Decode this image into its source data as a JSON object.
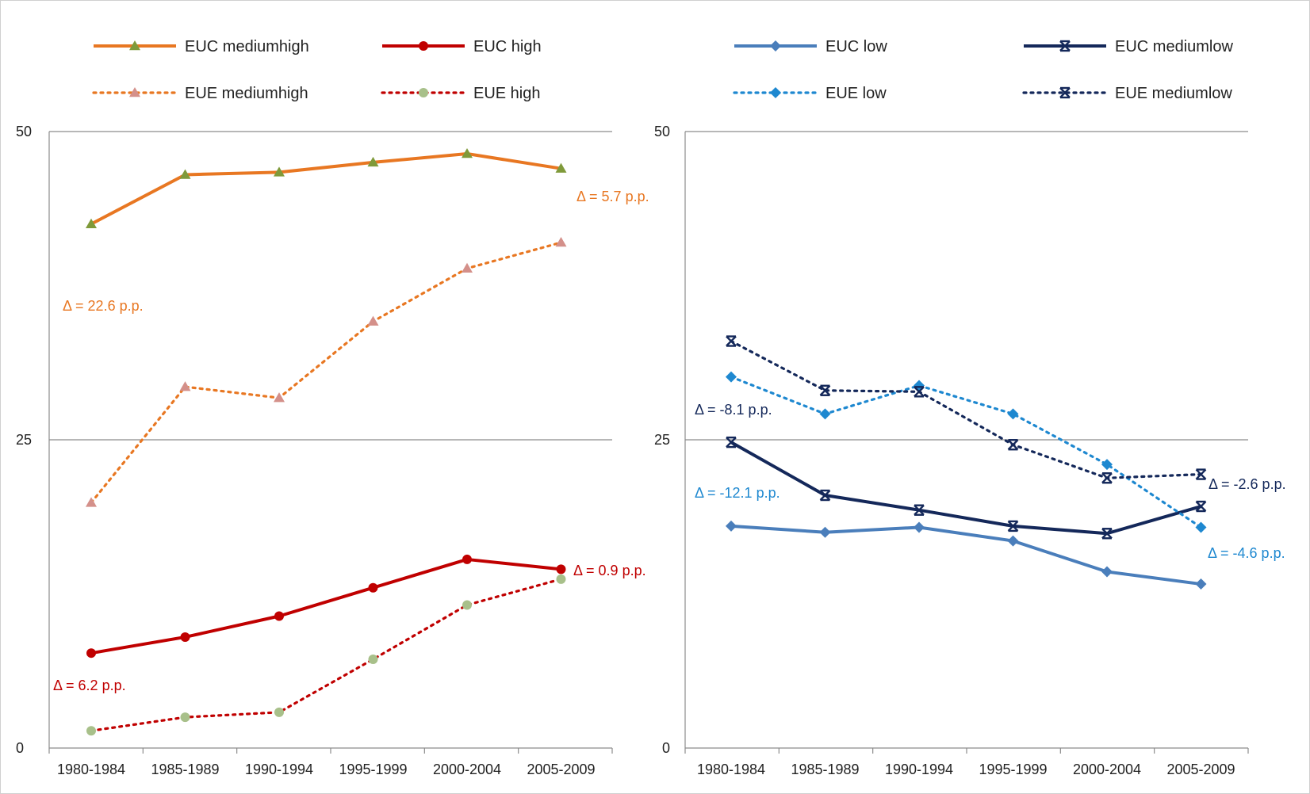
{
  "chart_data": [
    {
      "type": "line",
      "title": "",
      "xlabel": "",
      "ylabel": "",
      "ylim": [
        0,
        50
      ],
      "yticks": [
        "0",
        "25",
        "50"
      ],
      "categories": [
        "1980-1984",
        "1985-1989",
        "1990-1994",
        "1995-1999",
        "2000-2004",
        "2005-2009"
      ],
      "grid": "horizontal major gridlines",
      "legend_position": "top",
      "series": [
        {
          "name": "EUC mediumhigh",
          "values": [
            42.5,
            46.5,
            46.7,
            47.5,
            48.2,
            47.0
          ],
          "color": "#E87722",
          "style": "solid",
          "marker": "triangle",
          "marker_color": "#7F9A3A"
        },
        {
          "name": "EUC high",
          "values": [
            7.7,
            9.0,
            10.7,
            13.0,
            15.3,
            14.5
          ],
          "color": "#C00000",
          "style": "solid",
          "marker": "circle",
          "marker_color": "#C00000"
        },
        {
          "name": "EUE mediumhigh",
          "values": [
            19.9,
            29.3,
            28.4,
            34.6,
            38.9,
            41.0
          ],
          "color": "#E87722",
          "style": "dotted",
          "marker": "triangle",
          "marker_color": "#D4908A"
        },
        {
          "name": "EUE high",
          "values": [
            1.4,
            2.5,
            2.9,
            7.2,
            11.6,
            13.7
          ],
          "color": "#C00000",
          "style": "dotted",
          "marker": "circle",
          "marker_color": "#A8C08A"
        }
      ],
      "annotations": [
        {
          "text": "Δ = 5.7 p.p.",
          "color": "#E87722"
        },
        {
          "text": "Δ = 22.6 p.p.",
          "color": "#E87722"
        },
        {
          "text": "Δ = 0.9 p.p.",
          "color": "#C00000"
        },
        {
          "text": "Δ = 6.2 p.p.",
          "color": "#C00000"
        }
      ]
    },
    {
      "type": "line",
      "title": "",
      "xlabel": "",
      "ylabel": "",
      "ylim": [
        0,
        50
      ],
      "yticks": [
        "0",
        "25",
        "50"
      ],
      "categories": [
        "1980-1984",
        "1985-1989",
        "1990-1994",
        "1995-1999",
        "2000-2004",
        "2005-2009"
      ],
      "grid": "horizontal major gridlines",
      "legend_position": "top",
      "series": [
        {
          "name": "EUC low",
          "values": [
            18.0,
            17.5,
            17.9,
            16.8,
            14.3,
            13.3
          ],
          "color": "#4A7EBB",
          "style": "solid",
          "marker": "diamond",
          "marker_color": "#4A7EBB"
        },
        {
          "name": "EUC mediumlow",
          "values": [
            24.8,
            20.5,
            19.3,
            18.0,
            17.4,
            19.6
          ],
          "color": "#14285A",
          "style": "solid",
          "marker": "star",
          "marker_color": "#14285A"
        },
        {
          "name": "EUE low",
          "values": [
            30.1,
            27.1,
            29.4,
            27.1,
            23.0,
            17.9
          ],
          "color": "#1E88D0",
          "style": "dotted",
          "marker": "diamond",
          "marker_color": "#1E88D0"
        },
        {
          "name": "EUE mediumlow",
          "values": [
            33.0,
            29.0,
            28.9,
            24.6,
            21.9,
            22.2
          ],
          "color": "#14285A",
          "style": "dotted",
          "marker": "star",
          "marker_color": "#14285A"
        }
      ],
      "annotations": [
        {
          "text": "Δ = -8.1 p.p.",
          "color": "#14285A"
        },
        {
          "text": "Δ = -12.1 p.p.",
          "color": "#1E88D0"
        },
        {
          "text": "Δ = -2.6 p.p.",
          "color": "#14285A"
        },
        {
          "text": "Δ = -4.6 p.p.",
          "color": "#1E88D0"
        }
      ]
    }
  ]
}
